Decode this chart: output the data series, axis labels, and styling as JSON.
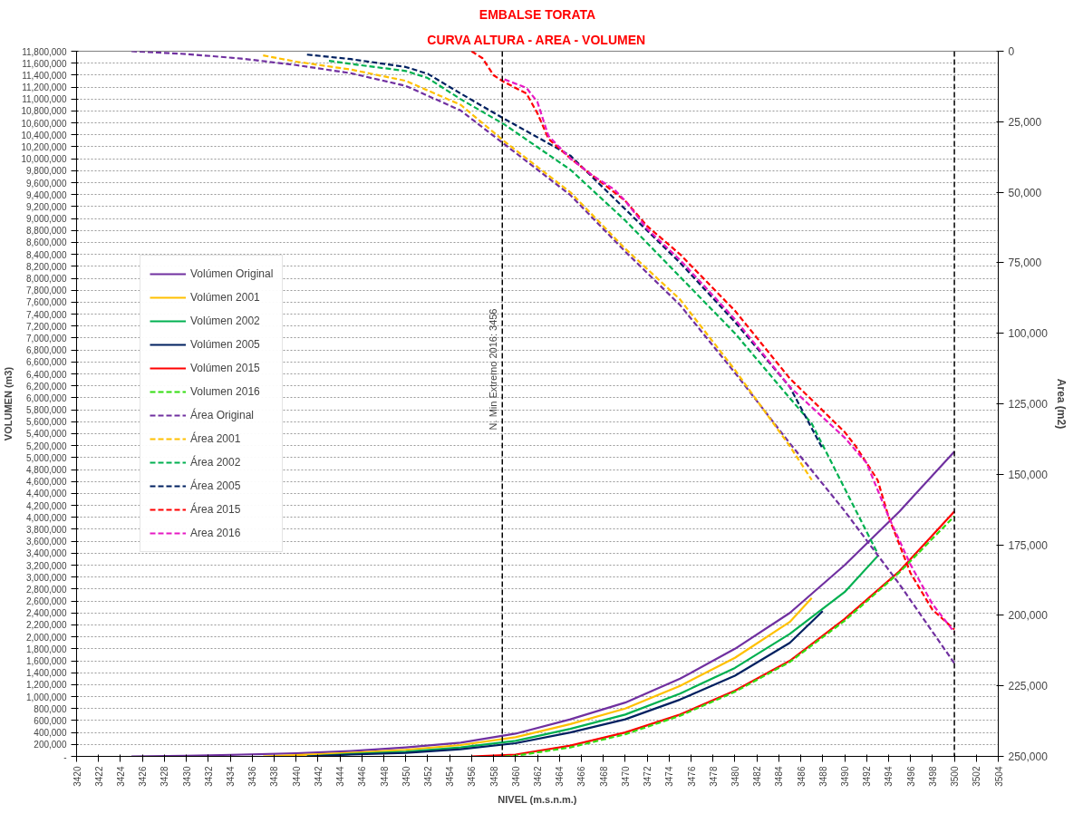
{
  "chart_data": {
    "type": "line",
    "title": "EMBALSE TORATA",
    "subtitle": "CURVA ALTURA - AREA - VOLUMEN",
    "xlabel": "NIVEL (m.s.n.m.)",
    "ylabel": "VOLUMEN (m3)",
    "y2label": "Area (m2)",
    "xlim": [
      3420,
      3504
    ],
    "xticks": [
      3420,
      3422,
      3424,
      3426,
      3428,
      3430,
      3432,
      3434,
      3436,
      3438,
      3440,
      3442,
      3444,
      3446,
      3448,
      3450,
      3452,
      3454,
      3456,
      3458,
      3460,
      3462,
      3464,
      3466,
      3468,
      3470,
      3472,
      3474,
      3476,
      3478,
      3480,
      3482,
      3484,
      3486,
      3488,
      3490,
      3492,
      3494,
      3496,
      3498,
      3500,
      3502,
      3504
    ],
    "ylim": [
      0,
      11800000
    ],
    "yticks": [
      {
        "value": 0,
        "label": "-"
      },
      {
        "value": 200000,
        "label": "200,000"
      },
      {
        "value": 400000,
        "label": "400,000"
      },
      {
        "value": 600000,
        "label": "600,000"
      },
      {
        "value": 800000,
        "label": "800,000"
      },
      {
        "value": 1000000,
        "label": "1,000,000"
      },
      {
        "value": 1200000,
        "label": "1,200,000"
      },
      {
        "value": 1400000,
        "label": "1,400,000"
      },
      {
        "value": 1600000,
        "label": "1,600,000"
      },
      {
        "value": 1800000,
        "label": "1,800,000"
      },
      {
        "value": 2000000,
        "label": "2,000,000"
      },
      {
        "value": 2200000,
        "label": "2,200,000"
      },
      {
        "value": 2400000,
        "label": "2,400,000"
      },
      {
        "value": 2600000,
        "label": "2,600,000"
      },
      {
        "value": 2800000,
        "label": "2,800,000"
      },
      {
        "value": 3000000,
        "label": "3,000,000"
      },
      {
        "value": 3200000,
        "label": "3,200,000"
      },
      {
        "value": 3400000,
        "label": "3,400,000"
      },
      {
        "value": 3600000,
        "label": "3,600,000"
      },
      {
        "value": 3800000,
        "label": "3,800,000"
      },
      {
        "value": 4000000,
        "label": "4,000,000"
      },
      {
        "value": 4200000,
        "label": "4,200,000"
      },
      {
        "value": 4400000,
        "label": "4,400,000"
      },
      {
        "value": 4600000,
        "label": "4,600,000"
      },
      {
        "value": 4800000,
        "label": "4,800,000"
      },
      {
        "value": 5000000,
        "label": "5,000,000"
      },
      {
        "value": 5200000,
        "label": "5,200,000"
      },
      {
        "value": 5400000,
        "label": "5,400,000"
      },
      {
        "value": 5600000,
        "label": "5,600,000"
      },
      {
        "value": 5800000,
        "label": "5,800,000"
      },
      {
        "value": 6000000,
        "label": "6,000,000"
      },
      {
        "value": 6200000,
        "label": "6,200,000"
      },
      {
        "value": 6400000,
        "label": "6,400,000"
      },
      {
        "value": 6600000,
        "label": "6,600,000"
      },
      {
        "value": 6800000,
        "label": "6,800,000"
      },
      {
        "value": 7000000,
        "label": "7,000,000"
      },
      {
        "value": 7200000,
        "label": "7,200,000"
      },
      {
        "value": 7400000,
        "label": "7,400,000"
      },
      {
        "value": 7600000,
        "label": "7,600,000"
      },
      {
        "value": 7800000,
        "label": "7,800,000"
      },
      {
        "value": 8000000,
        "label": "8,000,000"
      },
      {
        "value": 8200000,
        "label": "8,200,000"
      },
      {
        "value": 8400000,
        "label": "8,400,000"
      },
      {
        "value": 8600000,
        "label": "8,600,000"
      },
      {
        "value": 8800000,
        "label": "8,800,000"
      },
      {
        "value": 9000000,
        "label": "9,000,000"
      },
      {
        "value": 9200000,
        "label": "9,200,000"
      },
      {
        "value": 9400000,
        "label": "9,400,000"
      },
      {
        "value": 9600000,
        "label": "9,600,000"
      },
      {
        "value": 9800000,
        "label": "9,800,000"
      },
      {
        "value": 10000000,
        "label": "10,000,000"
      },
      {
        "value": 10200000,
        "label": "10,200,000"
      },
      {
        "value": 10400000,
        "label": "10,400,000"
      },
      {
        "value": 10600000,
        "label": "10,600,000"
      },
      {
        "value": 10800000,
        "label": "10,800,000"
      },
      {
        "value": 11000000,
        "label": "11,000,000"
      },
      {
        "value": 11200000,
        "label": "11,200,000"
      },
      {
        "value": 11400000,
        "label": "11,400,000"
      },
      {
        "value": 11600000,
        "label": "11,600,000"
      },
      {
        "value": 11800000,
        "label": "11,800,000"
      }
    ],
    "y2lim": [
      250000,
      0
    ],
    "y2ticks": [
      {
        "value": 0,
        "label": "0"
      },
      {
        "value": 25000,
        "label": "25,000"
      },
      {
        "value": 50000,
        "label": "50,000"
      },
      {
        "value": 75000,
        "label": "75,000"
      },
      {
        "value": 100000,
        "label": "100,000"
      },
      {
        "value": 125000,
        "label": "125,000"
      },
      {
        "value": 150000,
        "label": "150,000"
      },
      {
        "value": 175000,
        "label": "175,000"
      },
      {
        "value": 200000,
        "label": "200,000"
      },
      {
        "value": 225000,
        "label": "225,000"
      },
      {
        "value": 250000,
        "label": "250,000"
      }
    ],
    "grid": "y",
    "legend": "left",
    "annotations": [
      {
        "text": "N. Min Extremo 2016:  3456",
        "x": 3458.8,
        "y": 6500000
      }
    ],
    "ref_lines": [
      {
        "axis": "x",
        "value": 3458.8,
        "label": null,
        "color": "#000000",
        "line_style": "dashed"
      },
      {
        "axis": "x",
        "value": 3500,
        "label": null,
        "color": "#000000",
        "line_style": "dashed"
      }
    ],
    "series": [
      {
        "name": "Volúmen Original",
        "color": "#7030a0",
        "line_style": "solid",
        "x": [
          3425,
          3430,
          3435,
          3440,
          3445,
          3450,
          3455,
          3460,
          3465,
          3470,
          3475,
          3480,
          3485,
          3490,
          3495,
          3500
        ],
        "values": [
          0,
          10000,
          30000,
          50000,
          90000,
          150000,
          230000,
          380000,
          620000,
          900000,
          1300000,
          1800000,
          2400000,
          3200000,
          4100000,
          5100000
        ]
      },
      {
        "name": "Volúmen 2001",
        "color": "#ffc000",
        "line_style": "solid",
        "x": [
          3437,
          3440,
          3445,
          3450,
          3455,
          3460,
          3465,
          3470,
          3475,
          3480,
          3485,
          3487
        ],
        "values": [
          0,
          20000,
          60000,
          110000,
          190000,
          320000,
          540000,
          800000,
          1180000,
          1650000,
          2250000,
          2650000
        ]
      },
      {
        "name": "Volúmen 2002",
        "color": "#00b050",
        "line_style": "solid",
        "x": [
          3441,
          3445,
          3450,
          3455,
          3460,
          3465,
          3470,
          3475,
          3480,
          3485,
          3490,
          3493
        ],
        "values": [
          0,
          40000,
          80000,
          150000,
          260000,
          460000,
          700000,
          1050000,
          1480000,
          2050000,
          2750000,
          3350000
        ]
      },
      {
        "name": "Volúmen 2005",
        "color": "#002060",
        "line_style": "solid",
        "x": [
          3441,
          3445,
          3450,
          3455,
          3460,
          3465,
          3470,
          3475,
          3480,
          3485,
          3488
        ],
        "values": [
          0,
          30000,
          60000,
          120000,
          220000,
          400000,
          620000,
          950000,
          1350000,
          1900000,
          2430000
        ]
      },
      {
        "name": "Volúmen 2015",
        "color": "#ff0000",
        "line_style": "solid",
        "x": [
          3456,
          3460,
          3465,
          3470,
          3475,
          3480,
          3485,
          3490,
          3495,
          3500
        ],
        "values": [
          0,
          30000,
          180000,
          400000,
          700000,
          1100000,
          1600000,
          2300000,
          3100000,
          4100000
        ]
      },
      {
        "name": "Volumen 2016",
        "color": "#33dd11",
        "line_style": "dashed",
        "x": [
          3459,
          3460,
          3465,
          3470,
          3475,
          3480,
          3485,
          3490,
          3495,
          3500
        ],
        "values": [
          0,
          10000,
          150000,
          370000,
          680000,
          1080000,
          1580000,
          2270000,
          3080000,
          4020000
        ]
      },
      {
        "name": "Área Original",
        "color": "#7030a0",
        "line_style": "dashed",
        "axis": "y2",
        "x": [
          3425,
          3430,
          3435,
          3440,
          3445,
          3450,
          3455,
          3459,
          3465,
          3470,
          3475,
          3480,
          3485,
          3490,
          3495,
          3500
        ],
        "values": [
          0,
          1000,
          2600,
          4900,
          7800,
          12300,
          21000,
          33000,
          51000,
          71000,
          90000,
          114000,
          139000,
          163000,
          189000,
          217000
        ]
      },
      {
        "name": "Área 2001",
        "color": "#ffc000",
        "line_style": "dashed",
        "axis": "y2",
        "x": [
          3437,
          3440,
          3445,
          3450,
          3455,
          3459,
          3465,
          3470,
          3475,
          3480,
          3485,
          3487
        ],
        "values": [
          1500,
          3700,
          6500,
          10500,
          19000,
          32000,
          50000,
          70000,
          88000,
          113000,
          140000,
          152000
        ]
      },
      {
        "name": "Área 2002",
        "color": "#00b050",
        "line_style": "dashed",
        "axis": "y2",
        "x": [
          3443,
          3445,
          3450,
          3452,
          3455,
          3459,
          3465,
          3470,
          3475,
          3480,
          3485,
          3487,
          3490,
          3493
        ],
        "values": [
          3400,
          4500,
          7000,
          9500,
          17000,
          26000,
          42000,
          60000,
          80000,
          100000,
          123000,
          132000,
          155000,
          178000
        ]
      },
      {
        "name": "Área 2005",
        "color": "#002060",
        "line_style": "dashed",
        "axis": "y2",
        "x": [
          3441,
          3445,
          3450,
          3452,
          3455,
          3459,
          3465,
          3470,
          3475,
          3480,
          3485,
          3488
        ],
        "values": [
          1200,
          2800,
          5600,
          8000,
          15000,
          24000,
          37000,
          56000,
          75000,
          96000,
          119000,
          141000
        ]
      },
      {
        "name": "Área 2015",
        "color": "#ff0000",
        "line_style": "dashed",
        "axis": "y2",
        "x": [
          3456,
          3457,
          3458,
          3459,
          3461,
          3462,
          3463,
          3465,
          3467,
          3469,
          3470,
          3472,
          3475,
          3480,
          3485,
          3490,
          3491,
          3493,
          3494,
          3496,
          3498,
          3500
        ],
        "values": [
          0,
          2500,
          8500,
          11000,
          15000,
          22000,
          31000,
          38000,
          44000,
          50000,
          53000,
          62000,
          72000,
          92000,
          116000,
          135000,
          140000,
          152000,
          165000,
          185000,
          198000,
          205000
        ]
      },
      {
        "name": "Area 2016",
        "color": "#e619c3",
        "line_style": "dashed",
        "axis": "y2",
        "x": [
          3459,
          3461,
          3462,
          3463,
          3465,
          3467,
          3469,
          3470,
          3472,
          3475,
          3480,
          3485,
          3490,
          3492,
          3494,
          3496,
          3498,
          3500
        ],
        "values": [
          10000,
          13000,
          18000,
          30000,
          38000,
          44000,
          49000,
          53000,
          63000,
          74000,
          95000,
          119000,
          137000,
          146000,
          165000,
          182000,
          196000,
          206000
        ]
      }
    ]
  }
}
